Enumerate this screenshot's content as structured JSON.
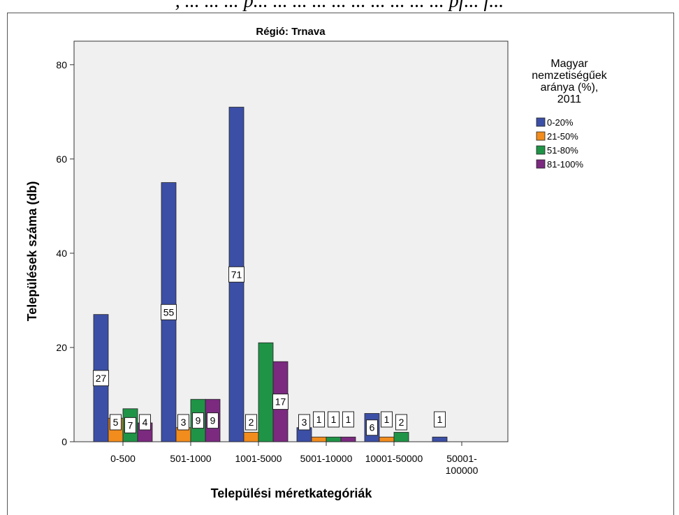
{
  "header": {
    "partial_text": ", ... ... ... p... ... ... ... ... ... ... ... ... ... pf... f..."
  },
  "chart_data": {
    "type": "bar",
    "title": "Régió: Trnava",
    "xlabel": "Települési méretkategóriák",
    "ylabel": "Települések száma (db)",
    "ylim": [
      0,
      85
    ],
    "yticks": [
      0,
      20,
      40,
      60,
      80
    ],
    "categories": [
      "0-500",
      "501-1000",
      "1001-5000",
      "5001-10000",
      "10001-50000",
      "50001-\n100000"
    ],
    "category_lines": [
      [
        "0-500"
      ],
      [
        "501-1000"
      ],
      [
        "1001-5000"
      ],
      [
        "5001-10000"
      ],
      [
        "10001-50000"
      ],
      [
        "50001-",
        "100000"
      ]
    ],
    "legend_title_lines": [
      "Magyar",
      "nemzetiségűek",
      "aránya (%),",
      "2011"
    ],
    "legend_placement": "right",
    "grid": false,
    "series": [
      {
        "name": "0-20%",
        "color": "#3c4fa6",
        "values": [
          27,
          55,
          71,
          3,
          6,
          1
        ],
        "labels": [
          "27",
          "55",
          "71",
          "3",
          "6",
          "1"
        ]
      },
      {
        "name": "21-50%",
        "color": "#f28c1c",
        "values": [
          5,
          3,
          2,
          1,
          1,
          0
        ],
        "labels": [
          "5",
          "3",
          "2",
          "1",
          "1",
          null
        ]
      },
      {
        "name": "51-80%",
        "color": "#1f9447",
        "values": [
          7,
          9,
          21,
          1,
          2,
          0
        ],
        "labels": [
          "7",
          "9",
          null,
          "1",
          "2",
          null
        ]
      },
      {
        "name": "81-100%",
        "color": "#7b2a80",
        "values": [
          4,
          9,
          17,
          1,
          0,
          0
        ],
        "labels": [
          "4",
          "9",
          "17",
          "1",
          null,
          null
        ]
      }
    ]
  }
}
